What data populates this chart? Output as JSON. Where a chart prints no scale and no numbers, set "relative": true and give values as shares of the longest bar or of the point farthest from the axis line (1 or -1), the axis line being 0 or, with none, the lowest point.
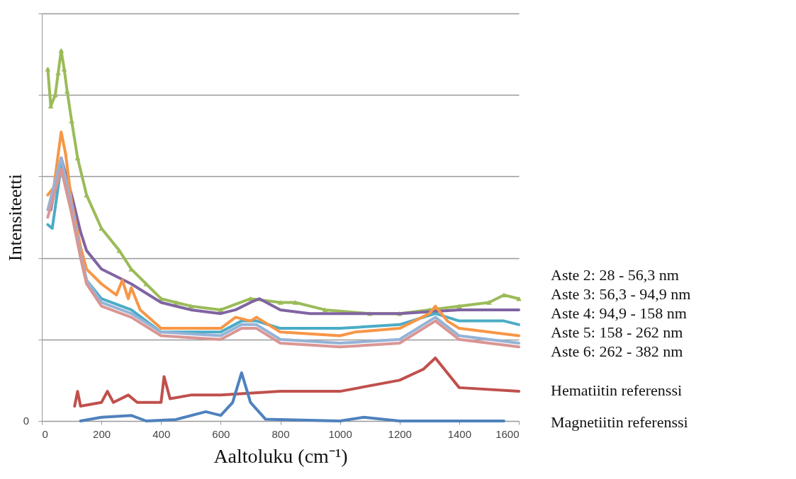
{
  "chart_data": {
    "type": "line",
    "relative": true,
    "xlabel": "Aaltoluku (cm⁻¹)",
    "ylabel": "Intensiteetti",
    "xlim": [
      0,
      1600
    ],
    "xticks": [
      0,
      200,
      400,
      600,
      800,
      1000,
      1200,
      1400,
      1600
    ],
    "annotations": [
      "0"
    ],
    "grid": "y",
    "series": [
      {
        "name": "Aste 2: 28 - 56,3 nm",
        "color": "#9bbb59",
        "marker": "triangle",
        "x": [
          20,
          30,
          45,
          55,
          65,
          75,
          85,
          100,
          120,
          150,
          200,
          260,
          300,
          350,
          400,
          450,
          500,
          600,
          700,
          800,
          850,
          950,
          1100,
          1200,
          1300,
          1400,
          1500,
          1550,
          1600
        ],
        "values": [
          0.95,
          0.85,
          0.88,
          0.94,
          1,
          0.95,
          0.89,
          0.81,
          0.71,
          0.61,
          0.52,
          0.46,
          0.41,
          0.37,
          0.33,
          0.32,
          0.31,
          0.3,
          0.33,
          0.32,
          0.32,
          0.3,
          0.29,
          0.29,
          0.3,
          0.31,
          0.32,
          0.34,
          0.33
        ]
      },
      {
        "name": "Aste 3: 56,3 - 94,9 nm",
        "color": "#8064a2",
        "x": [
          30,
          65,
          100,
          130,
          150,
          200,
          300,
          400,
          500,
          600,
          650,
          700,
          730,
          800,
          900,
          1000,
          1200,
          1400,
          1600
        ],
        "values": [
          0.57,
          0.71,
          0.61,
          0.51,
          0.46,
          0.41,
          0.37,
          0.32,
          0.3,
          0.29,
          0.3,
          0.32,
          0.33,
          0.3,
          0.29,
          0.29,
          0.29,
          0.3,
          0.3
        ]
      },
      {
        "name": "Aste 4: 94,9 - 158 nm",
        "color": "#4bacc6",
        "x": [
          20,
          35,
          65,
          100,
          130,
          150,
          200,
          300,
          400,
          600,
          670,
          720,
          800,
          1000,
          1200,
          1320,
          1400,
          1550,
          1600
        ],
        "values": [
          0.53,
          0.52,
          0.69,
          0.57,
          0.45,
          0.38,
          0.33,
          0.3,
          0.24,
          0.24,
          0.27,
          0.27,
          0.25,
          0.25,
          0.26,
          0.29,
          0.27,
          0.27,
          0.26
        ]
      },
      {
        "name": "Aste 5: 158 - 262 nm",
        "color": "#f79646",
        "x": [
          20,
          40,
          65,
          80,
          100,
          130,
          150,
          200,
          250,
          270,
          290,
          300,
          330,
          400,
          500,
          600,
          650,
          700,
          720,
          800,
          1000,
          1050,
          1200,
          1300,
          1320,
          1360,
          1400,
          1500,
          1600
        ],
        "values": [
          0.61,
          0.63,
          0.78,
          0.72,
          0.59,
          0.47,
          0.41,
          0.37,
          0.34,
          0.38,
          0.33,
          0.36,
          0.3,
          0.25,
          0.25,
          0.25,
          0.28,
          0.27,
          0.28,
          0.24,
          0.23,
          0.24,
          0.25,
          0.29,
          0.31,
          0.27,
          0.25,
          0.24,
          0.23
        ]
      },
      {
        "name": "Aste 6: 262 - 382 nm",
        "color": "#95b3d7",
        "x": [
          20,
          65,
          100,
          130,
          150,
          200,
          300,
          400,
          600,
          670,
          720,
          800,
          1000,
          1200,
          1320,
          1400,
          1600
        ],
        "values": [
          0.57,
          0.71,
          0.58,
          0.45,
          0.38,
          0.32,
          0.29,
          0.24,
          0.23,
          0.26,
          0.26,
          0.22,
          0.21,
          0.22,
          0.28,
          0.23,
          0.21
        ]
      },
      {
        "color": "#d99694",
        "x": [
          20,
          65,
          100,
          130,
          150,
          200,
          300,
          400,
          600,
          670,
          720,
          800,
          1000,
          1200,
          1320,
          1400,
          1600
        ],
        "values": [
          0.55,
          0.68,
          0.56,
          0.44,
          0.37,
          0.31,
          0.28,
          0.23,
          0.22,
          0.25,
          0.25,
          0.21,
          0.2,
          0.21,
          0.27,
          0.22,
          0.2
        ]
      },
      {
        "name": "Hematiitin referenssi",
        "color": "#c0504d",
        "x": [
          110,
          120,
          130,
          200,
          220,
          240,
          290,
          320,
          400,
          410,
          430,
          500,
          600,
          800,
          1000,
          1200,
          1280,
          1320,
          1360,
          1400,
          1600
        ],
        "values": [
          0.04,
          0.08,
          0.04,
          0.05,
          0.08,
          0.05,
          0.07,
          0.05,
          0.05,
          0.12,
          0.06,
          0.07,
          0.07,
          0.08,
          0.08,
          0.11,
          0.14,
          0.17,
          0.13,
          0.09,
          0.08
        ]
      },
      {
        "name": "Magnetiitin referenssi",
        "color": "#4f81bd",
        "x": [
          130,
          200,
          300,
          350,
          450,
          550,
          600,
          640,
          670,
          700,
          750,
          1000,
          1080,
          1200,
          1550
        ],
        "values": [
          0,
          0.01,
          0.015,
          0,
          0.004,
          0.025,
          0.015,
          0.05,
          0.13,
          0.05,
          0.005,
          0,
          0.01,
          0,
          0
        ]
      }
    ]
  }
}
